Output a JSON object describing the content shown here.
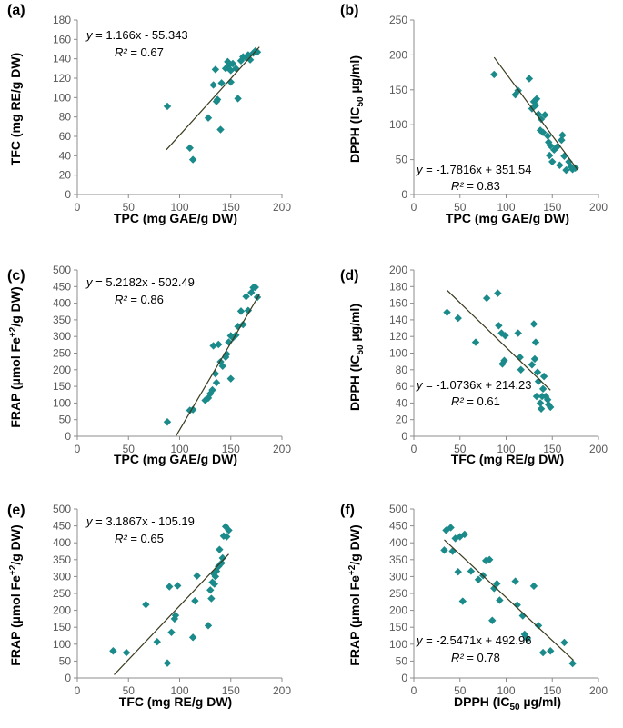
{
  "colors": {
    "marker": "#1b8a8a",
    "line": "#3a3a1e",
    "axis": "#8c8c8c"
  },
  "chart_data": [
    {
      "type": "scatter",
      "panel_label": "(a)",
      "xlabel": "TPC (mg GAE/g DW)",
      "ylabel": "TFC (mg RE/g DW)",
      "xlim": [
        0,
        200
      ],
      "ylim": [
        0,
        180
      ],
      "xticks": [
        0,
        50,
        100,
        150,
        200
      ],
      "yticks": [
        0,
        20,
        40,
        60,
        80,
        100,
        120,
        140,
        160,
        180
      ],
      "equation": "y = 1.166x - 55.343",
      "r2": "R² = 0.67",
      "fit": {
        "slope": 1.166,
        "intercept": -55.343,
        "x_range": [
          87,
          178
        ]
      },
      "points": [
        [
          88,
          91
        ],
        [
          110,
          48
        ],
        [
          113,
          36
        ],
        [
          128,
          79
        ],
        [
          133,
          113
        ],
        [
          135,
          129
        ],
        [
          136,
          96
        ],
        [
          137,
          98
        ],
        [
          140,
          67
        ],
        [
          141,
          115
        ],
        [
          145,
          130
        ],
        [
          147,
          137
        ],
        [
          148,
          133
        ],
        [
          150,
          128
        ],
        [
          150,
          116
        ],
        [
          152,
          135
        ],
        [
          155,
          130
        ],
        [
          157,
          99
        ],
        [
          160,
          138
        ],
        [
          162,
          142
        ],
        [
          165,
          141
        ],
        [
          167,
          144
        ],
        [
          169,
          139
        ],
        [
          172,
          146
        ],
        [
          174,
          148
        ],
        [
          176,
          147
        ]
      ]
    },
    {
      "type": "scatter",
      "panel_label": "(b)",
      "xlabel": "TPC (mg GAE/g DW)",
      "ylabel": "DPPH (IC",
      "ylabel_sub": "50",
      "ylabel_end": " µg/ml)",
      "xlim": [
        0,
        200
      ],
      "ylim": [
        0,
        250
      ],
      "xticks": [
        0,
        50,
        100,
        150,
        200
      ],
      "yticks": [
        0,
        50,
        100,
        150,
        200,
        250
      ],
      "equation": "y = -1.7816x + 351.54",
      "r2": "R² = 0.83",
      "fit": {
        "slope": -1.7816,
        "intercept": 351.54,
        "x_range": [
          87,
          178
        ]
      },
      "points": [
        [
          87,
          172
        ],
        [
          110,
          143
        ],
        [
          113,
          149
        ],
        [
          125,
          166
        ],
        [
          128,
          123
        ],
        [
          130,
          133
        ],
        [
          132,
          128
        ],
        [
          133,
          137
        ],
        [
          135,
          115
        ],
        [
          137,
          92
        ],
        [
          138,
          108
        ],
        [
          140,
          89
        ],
        [
          142,
          114
        ],
        [
          145,
          84
        ],
        [
          146,
          75
        ],
        [
          147,
          56
        ],
        [
          148,
          70
        ],
        [
          150,
          47
        ],
        [
          152,
          64
        ],
        [
          155,
          68
        ],
        [
          158,
          42
        ],
        [
          160,
          78
        ],
        [
          161,
          85
        ],
        [
          163,
          55
        ],
        [
          165,
          35
        ],
        [
          168,
          47
        ],
        [
          170,
          40
        ],
        [
          172,
          36
        ],
        [
          175,
          38
        ]
      ]
    },
    {
      "type": "scatter",
      "panel_label": "(c)",
      "xlabel": "TPC (mg GAE/g DW)",
      "ylabel": "FRAP (µmol Fe",
      "ylabel_sup": "+2",
      "ylabel_end": "/g DW)",
      "xlim": [
        0,
        200
      ],
      "ylim": [
        0,
        500
      ],
      "xticks": [
        0,
        50,
        100,
        150,
        200
      ],
      "yticks": [
        0,
        50,
        100,
        150,
        200,
        250,
        300,
        350,
        400,
        450,
        500
      ],
      "equation": "y = 5.2182x - 502.49",
      "r2": "R² = 0.86",
      "fit": {
        "slope": 5.2182,
        "intercept": -502.49,
        "x_range": [
          96.3,
          178
        ]
      },
      "points": [
        [
          88,
          43
        ],
        [
          110,
          78
        ],
        [
          113,
          80
        ],
        [
          125,
          108
        ],
        [
          128,
          115
        ],
        [
          130,
          128
        ],
        [
          132,
          139
        ],
        [
          133,
          272
        ],
        [
          135,
          188
        ],
        [
          136,
          161
        ],
        [
          138,
          276
        ],
        [
          140,
          224
        ],
        [
          142,
          211
        ],
        [
          145,
          238
        ],
        [
          146,
          247
        ],
        [
          148,
          283
        ],
        [
          150,
          173
        ],
        [
          150,
          302
        ],
        [
          152,
          296
        ],
        [
          155,
          304
        ],
        [
          157,
          330
        ],
        [
          160,
          376
        ],
        [
          162,
          336
        ],
        [
          165,
          420
        ],
        [
          167,
          378
        ],
        [
          170,
          432
        ],
        [
          172,
          447
        ],
        [
          174,
          448
        ],
        [
          176,
          418
        ]
      ]
    },
    {
      "type": "scatter",
      "panel_label": "(d)",
      "xlabel": "TFC (mg RE/g DW)",
      "ylabel": "DPPH (IC",
      "ylabel_sub": "50",
      "ylabel_end": " µg/ml)",
      "xlim": [
        0,
        200
      ],
      "ylim": [
        0,
        200
      ],
      "xticks": [
        0,
        50,
        100,
        150,
        200
      ],
      "yticks": [
        0,
        20,
        40,
        60,
        80,
        100,
        120,
        140,
        160,
        180,
        200
      ],
      "equation": "y = -1.0736x + 214.23",
      "r2": "R² = 0.61",
      "fit": {
        "slope": -1.0736,
        "intercept": 214.23,
        "x_range": [
          36,
          148
        ]
      },
      "points": [
        [
          36,
          149
        ],
        [
          48,
          142
        ],
        [
          67,
          113
        ],
        [
          79,
          166
        ],
        [
          91,
          172
        ],
        [
          92,
          133
        ],
        [
          95,
          124
        ],
        [
          96,
          87
        ],
        [
          98,
          91
        ],
        [
          99,
          121
        ],
        [
          113,
          124
        ],
        [
          115,
          95
        ],
        [
          116,
          80
        ],
        [
          128,
          86
        ],
        [
          130,
          135
        ],
        [
          131,
          93
        ],
        [
          132,
          113
        ],
        [
          133,
          48
        ],
        [
          134,
          77
        ],
        [
          135,
          66
        ],
        [
          137,
          40
        ],
        [
          138,
          33
        ],
        [
          139,
          48
        ],
        [
          140,
          57
        ],
        [
          141,
          72
        ],
        [
          143,
          48
        ],
        [
          145,
          44
        ],
        [
          146,
          38
        ],
        [
          148,
          35
        ]
      ]
    },
    {
      "type": "scatter",
      "panel_label": "(e)",
      "xlabel": "TFC (mg RE/g DW)",
      "ylabel": "FRAP (µmol Fe",
      "ylabel_sup": "+2",
      "ylabel_end": "/g DW)",
      "xlim": [
        0,
        200
      ],
      "ylim": [
        0,
        500
      ],
      "xticks": [
        0,
        50,
        100,
        150,
        200
      ],
      "yticks": [
        0,
        50,
        100,
        150,
        200,
        250,
        300,
        350,
        400,
        450,
        500
      ],
      "equation": "y = 3.1867x - 105.19",
      "r2": "R² = 0.65",
      "fit": {
        "slope": 3.1867,
        "intercept": -105.19,
        "x_range": [
          36,
          148
        ]
      },
      "points": [
        [
          35,
          80
        ],
        [
          48,
          75
        ],
        [
          67,
          217
        ],
        [
          78,
          107
        ],
        [
          88,
          44
        ],
        [
          90,
          270
        ],
        [
          92,
          135
        ],
        [
          95,
          175
        ],
        [
          96,
          185
        ],
        [
          98,
          273
        ],
        [
          113,
          120
        ],
        [
          115,
          228
        ],
        [
          117,
          302
        ],
        [
          128,
          155
        ],
        [
          130,
          260
        ],
        [
          131,
          235
        ],
        [
          132,
          283
        ],
        [
          133,
          309
        ],
        [
          134,
          278
        ],
        [
          135,
          300
        ],
        [
          136,
          316
        ],
        [
          138,
          330
        ],
        [
          139,
          380
        ],
        [
          141,
          340
        ],
        [
          142,
          355
        ],
        [
          143,
          420
        ],
        [
          145,
          448
        ],
        [
          146,
          418
        ],
        [
          148,
          437
        ]
      ]
    },
    {
      "type": "scatter",
      "panel_label": "(f)",
      "xlabel": "DPPH (IC",
      "xlabel_sub": "50",
      "xlabel_end": " µg/ml)",
      "ylabel": "FRAP (µmol Fe",
      "ylabel_sup": "+2",
      "ylabel_end": "/g DW)",
      "xlim": [
        0,
        200
      ],
      "ylim": [
        0,
        500
      ],
      "xticks": [
        0,
        50,
        100,
        150,
        200
      ],
      "yticks": [
        0,
        50,
        100,
        150,
        200,
        250,
        300,
        350,
        400,
        450,
        500
      ],
      "equation": "y = -2.5471x + 492.96",
      "r2": "R² = 0.78",
      "fit": {
        "slope": -2.5471,
        "intercept": 492.96,
        "x_range": [
          33,
          173
        ]
      },
      "points": [
        [
          33,
          378
        ],
        [
          35,
          437
        ],
        [
          40,
          445
        ],
        [
          42,
          375
        ],
        [
          45,
          413
        ],
        [
          48,
          314
        ],
        [
          50,
          418
        ],
        [
          53,
          227
        ],
        [
          55,
          425
        ],
        [
          62,
          316
        ],
        [
          70,
          291
        ],
        [
          75,
          303
        ],
        [
          78,
          347
        ],
        [
          82,
          350
        ],
        [
          85,
          170
        ],
        [
          87,
          265
        ],
        [
          90,
          279
        ],
        [
          93,
          230
        ],
        [
          110,
          286
        ],
        [
          112,
          216
        ],
        [
          118,
          184
        ],
        [
          120,
          129
        ],
        [
          123,
          116
        ],
        [
          130,
          272
        ],
        [
          135,
          155
        ],
        [
          140,
          75
        ],
        [
          148,
          80
        ],
        [
          163,
          105
        ],
        [
          172,
          43
        ]
      ]
    }
  ]
}
